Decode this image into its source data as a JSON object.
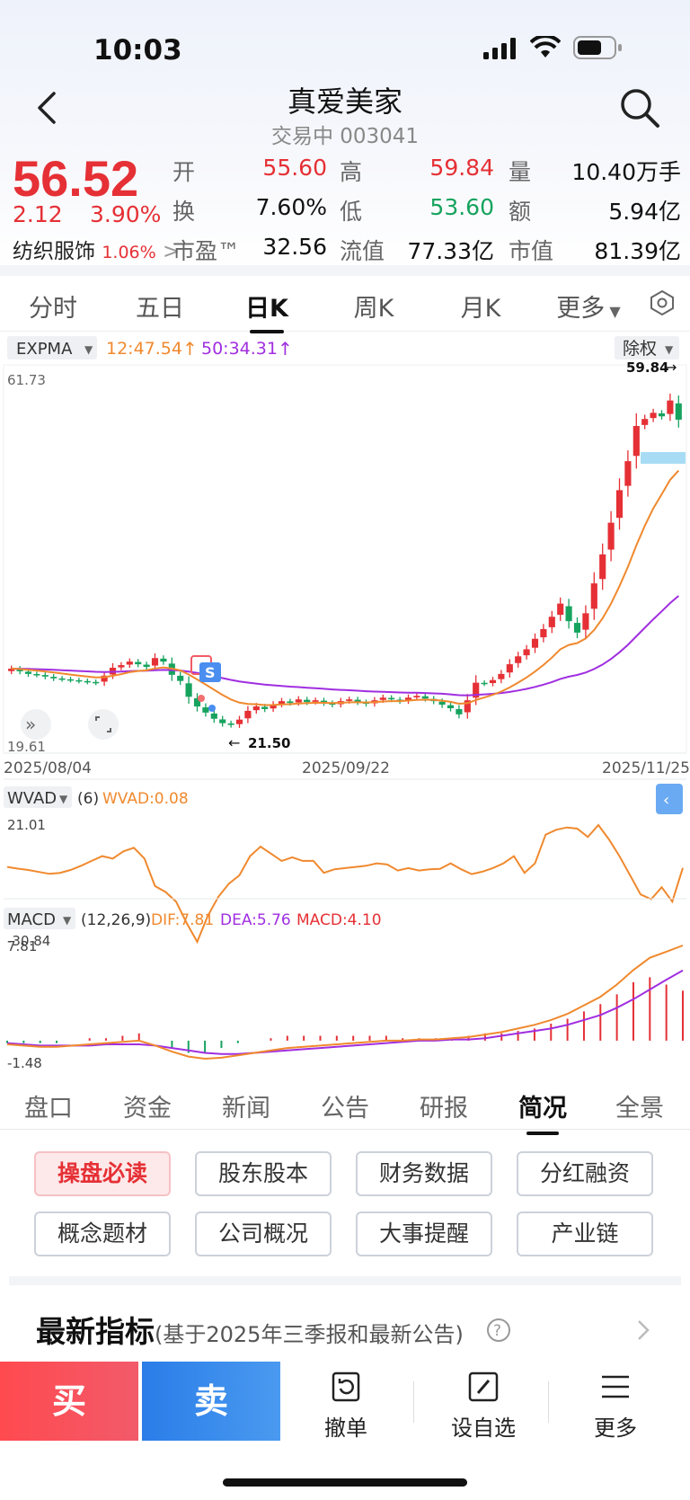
{
  "status": {
    "time": "10:03"
  },
  "header": {
    "title": "真爱美家",
    "subtitle": "交易中 003041"
  },
  "quote": {
    "price": "56.52",
    "change": "2.12",
    "change_pct": "3.90%",
    "industry": "纺织服饰",
    "industry_pct": "1.06%",
    "open_label": "开",
    "open": "55.60",
    "high_label": "高",
    "high": "59.84",
    "volume_label": "量",
    "volume": "10.40万手",
    "turnover_label": "换",
    "turnover": "7.60%",
    "low_label": "低",
    "low": "53.60",
    "amount_label": "额",
    "amount": "5.94亿",
    "pe_label": "市盈™",
    "pe": "32.56",
    "float_label": "流值",
    "float_cap": "77.33亿",
    "mcap_label": "市值",
    "mcap": "81.39亿"
  },
  "period_tabs": [
    "分时",
    "五日",
    "日K",
    "周K",
    "月K",
    "更多"
  ],
  "active_period": "日K",
  "chart": {
    "indicator": "EXPMA",
    "ma12": "12:47.54",
    "ma50": "50:34.31",
    "adjust": "除权",
    "ymax": "61.73",
    "ymin": "19.61",
    "high_mark": "59.84",
    "low_mark": "21.50",
    "date_start": "2025/08/04",
    "date_mid": "2025/09/22",
    "date_end": "2025/11/25",
    "signal": "S",
    "wvad_label": "WVAD",
    "wvad_param": "(6)",
    "wvad_value": "WVAD:0.08",
    "wvad_max": "21.01",
    "wvad_min": "-30.84",
    "macd_label": "MACD",
    "macd_param": "(12,26,9)",
    "dif": "DIF:7.81",
    "dea": "DEA:5.76",
    "macd": "MACD:4.10",
    "macd_max": "7.81",
    "macd_min": "-1.48",
    "colors": {
      "up": "#e53035",
      "down": "#16a35e",
      "ma12": "#f0892e",
      "ma50": "#a02ee0",
      "wvad": "#f0892e"
    }
  },
  "chart_data": {
    "type": "candlestick",
    "ylim": [
      19.61,
      61.73
    ],
    "x_ticks": [
      "2025/08/04",
      "2025/09/22",
      "2025/11/25"
    ],
    "series": [
      {
        "name": "12",
        "last": 47.54
      },
      {
        "name": "50",
        "last": 34.31
      }
    ],
    "closes": [
      28.2,
      27.9,
      27.6,
      27.5,
      27.3,
      27.1,
      27.0,
      26.9,
      26.8,
      26.7,
      26.6,
      27.4,
      28.3,
      28.6,
      29.0,
      28.7,
      28.4,
      29.4,
      29.0,
      27.5,
      26.8,
      25.0,
      23.9,
      23.2,
      22.5,
      22.0,
      21.8,
      22.4,
      23.4,
      23.9,
      23.6,
      24.1,
      24.5,
      24.3,
      24.7,
      24.4,
      24.6,
      24.3,
      24.1,
      24.5,
      24.7,
      24.4,
      24.2,
      24.6,
      24.9,
      24.7,
      24.5,
      24.9,
      25.1,
      24.8,
      24.5,
      24.1,
      23.7,
      23.0,
      24.6,
      26.6,
      26.5,
      26.9,
      27.6,
      28.7,
      29.6,
      30.4,
      31.6,
      32.7,
      34.1,
      35.6,
      33.6,
      32.3,
      34.5,
      37.9,
      41.2,
      44.8,
      48.5,
      51.8,
      55.8,
      56.6,
      57.3,
      56.9,
      58.7,
      56.52
    ],
    "wvad": [
      0.5,
      -0.2,
      -0.8,
      -1.6,
      -2.4,
      -2.0,
      -0.8,
      1.0,
      3.0,
      5.0,
      4.0,
      7.0,
      8.5,
      4.0,
      -7.5,
      -10.0,
      -14.0,
      -23.0,
      -30.8,
      -20.0,
      -12.0,
      -6.5,
      -3.0,
      5.0,
      9.0,
      6.0,
      3.0,
      4.5,
      3.0,
      3.0,
      -2.0,
      -0.5,
      0.0,
      0.5,
      1.0,
      2.0,
      1.5,
      -1.0,
      0.0,
      -1.0,
      -0.5,
      -0.3,
      2.0,
      -0.5,
      -2.5,
      -1.5,
      0.0,
      2.0,
      5.0,
      -2.0,
      2.0,
      14.0,
      16.0,
      17.0,
      16.5,
      13.0,
      18.0,
      12.0,
      5.0,
      -3.0,
      -11.0,
      -13.0,
      -8.0,
      -14.0,
      0.08
    ],
    "macd_dif": [
      -0.3,
      -0.4,
      -0.5,
      -0.5,
      -0.4,
      -0.3,
      -0.2,
      -0.1,
      0.0,
      -0.4,
      -0.9,
      -1.3,
      -1.48,
      -1.4,
      -1.2,
      -1.0,
      -0.8,
      -0.6,
      -0.5,
      -0.4,
      -0.3,
      -0.2,
      -0.1,
      0.0,
      0.0,
      0.1,
      0.1,
      0.2,
      0.3,
      0.5,
      0.7,
      1.0,
      1.3,
      1.7,
      2.2,
      2.9,
      3.6,
      4.6,
      5.8,
      6.8,
      7.3,
      7.81
    ],
    "macd_dea": [
      -0.2,
      -0.3,
      -0.4,
      -0.4,
      -0.4,
      -0.4,
      -0.3,
      -0.3,
      -0.3,
      -0.4,
      -0.6,
      -0.8,
      -1.0,
      -1.1,
      -1.1,
      -1.0,
      -0.9,
      -0.8,
      -0.7,
      -0.6,
      -0.5,
      -0.4,
      -0.3,
      -0.2,
      -0.1,
      0.0,
      0.0,
      0.1,
      0.1,
      0.2,
      0.4,
      0.6,
      0.8,
      1.0,
      1.3,
      1.7,
      2.1,
      2.7,
      3.4,
      4.2,
      5.0,
      5.76
    ],
    "annotations": [
      "59.84",
      "21.50"
    ]
  },
  "indicator_tabs": [
    "盘口",
    "资金",
    "新闻",
    "公告",
    "研报",
    "简况",
    "全景"
  ],
  "active_indicator_tab": "简况",
  "pills": [
    "操盘必读",
    "股东股本",
    "财务数据",
    "分红融资",
    "概念题材",
    "公司概况",
    "大事提醒",
    "产业链"
  ],
  "latest": {
    "title": "最新指标",
    "subtitle": "(基于2025年三季报和最新公告)"
  },
  "bottom": {
    "buy": "买",
    "sell": "卖",
    "cancel": "撤单",
    "watch": "设自选",
    "more": "更多"
  }
}
